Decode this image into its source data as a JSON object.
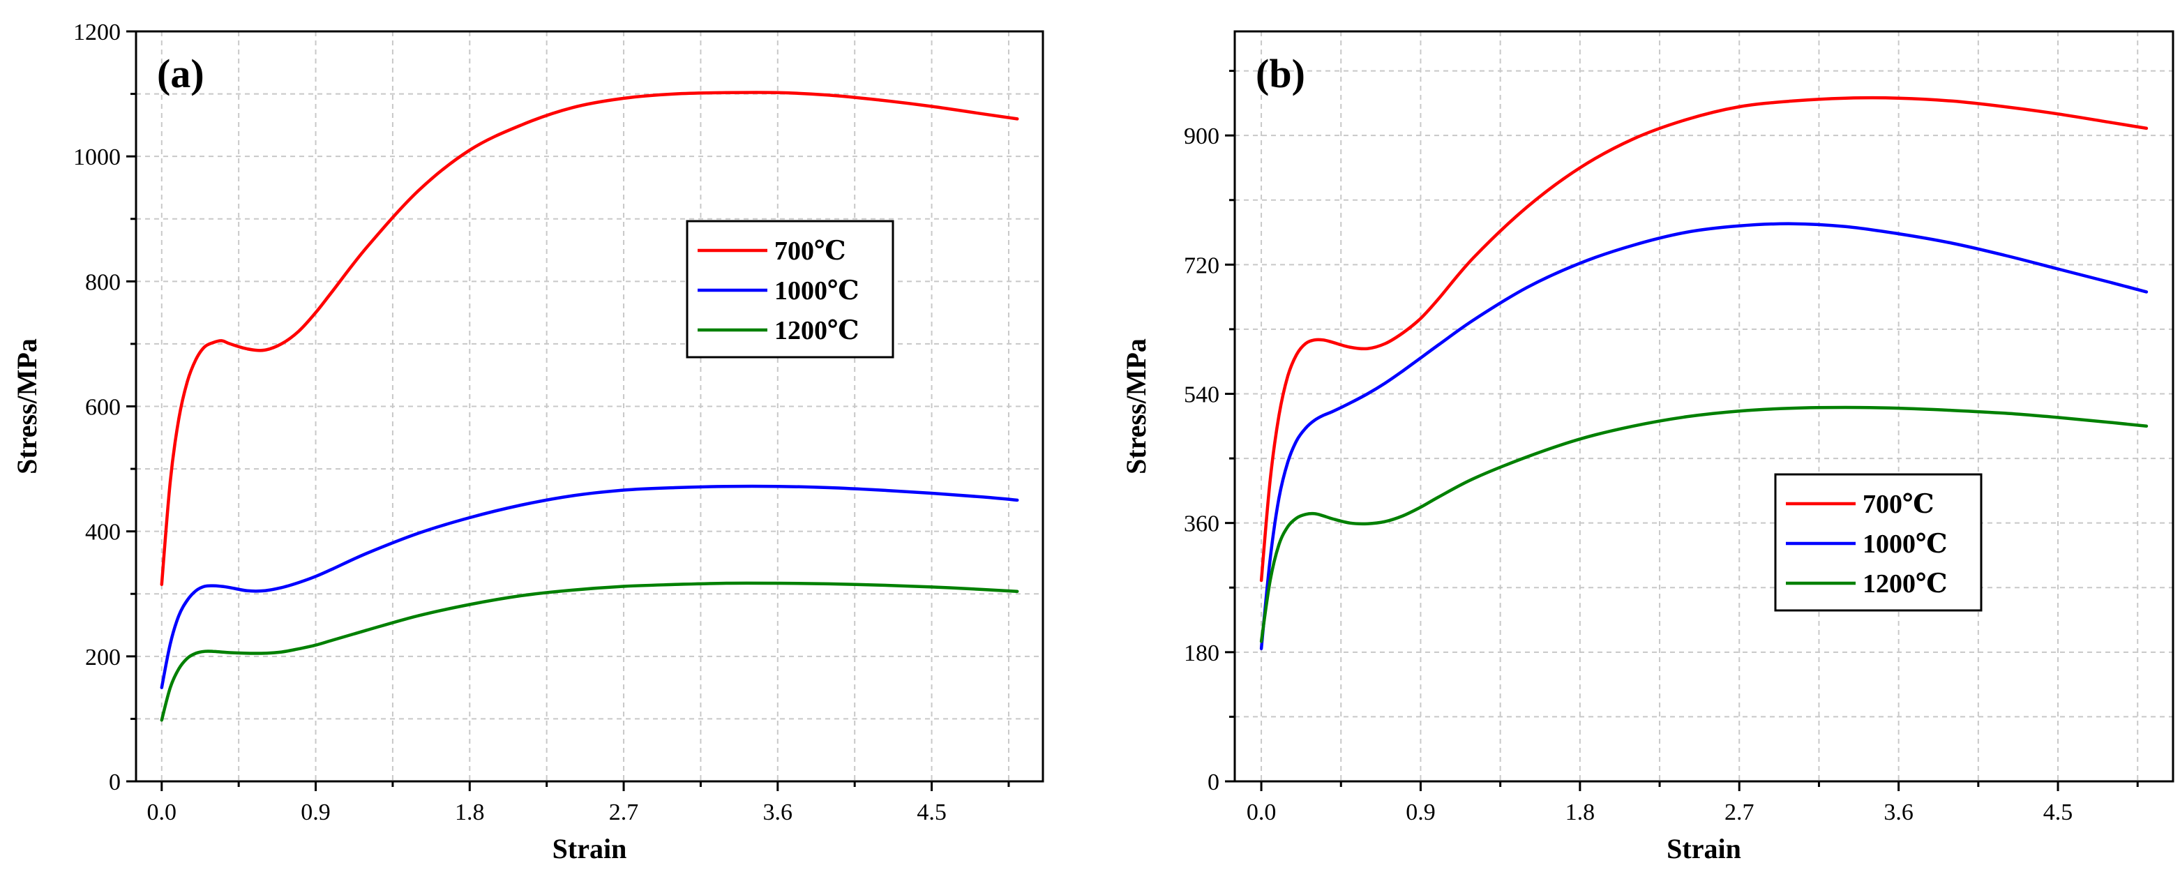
{
  "chart_data": [
    {
      "type": "line",
      "panel_label": "(a)",
      "xlabel": "Strain",
      "ylabel": "Stress/MPa",
      "xlim": [
        -0.15,
        5.15
      ],
      "ylim": [
        0,
        1200
      ],
      "xticks": [
        0.0,
        0.9,
        1.8,
        2.7,
        3.6,
        4.5
      ],
      "xtick_labels": [
        "0.0",
        "0.9",
        "1.8",
        "2.7",
        "3.6",
        "4.5"
      ],
      "yticks": [
        0,
        200,
        400,
        600,
        800,
        1000,
        1200
      ],
      "ytick_labels": [
        "0",
        "200",
        "400",
        "600",
        "800",
        "1000",
        "1200"
      ],
      "grid": true,
      "legend_position": "center-right",
      "series": [
        {
          "name": "700℃",
          "color": "#ff0000",
          "x": [
            0.0,
            0.05,
            0.1,
            0.15,
            0.2,
            0.25,
            0.3,
            0.35,
            0.4,
            0.5,
            0.6,
            0.7,
            0.8,
            0.9,
            1.0,
            1.2,
            1.5,
            1.8,
            2.1,
            2.4,
            2.7,
            3.0,
            3.3,
            3.6,
            3.9,
            4.2,
            4.5,
            4.8,
            5.0
          ],
          "y": [
            315,
            480,
            580,
            640,
            675,
            695,
            702,
            705,
            700,
            692,
            690,
            700,
            720,
            750,
            785,
            855,
            945,
            1010,
            1050,
            1078,
            1093,
            1100,
            1102,
            1102,
            1098,
            1090,
            1080,
            1068,
            1060
          ]
        },
        {
          "name": "1000℃",
          "color": "#0000ff",
          "x": [
            0.0,
            0.05,
            0.1,
            0.15,
            0.2,
            0.25,
            0.3,
            0.35,
            0.4,
            0.5,
            0.6,
            0.7,
            0.8,
            0.9,
            1.0,
            1.2,
            1.5,
            1.8,
            2.1,
            2.4,
            2.7,
            3.0,
            3.3,
            3.6,
            3.9,
            4.2,
            4.5,
            4.8,
            5.0
          ],
          "y": [
            150,
            220,
            265,
            290,
            305,
            312,
            313,
            312,
            310,
            305,
            305,
            310,
            318,
            328,
            340,
            365,
            397,
            422,
            442,
            457,
            466,
            470,
            472,
            472,
            470,
            466,
            461,
            455,
            450
          ]
        },
        {
          "name": "1200℃",
          "color": "#008000",
          "x": [
            0.0,
            0.05,
            0.1,
            0.15,
            0.2,
            0.25,
            0.3,
            0.35,
            0.4,
            0.5,
            0.6,
            0.7,
            0.8,
            0.9,
            1.0,
            1.2,
            1.5,
            1.8,
            2.1,
            2.4,
            2.7,
            3.0,
            3.3,
            3.6,
            3.9,
            4.2,
            4.5,
            4.8,
            5.0
          ],
          "y": [
            98,
            150,
            180,
            197,
            205,
            208,
            208,
            207,
            206,
            205,
            205,
            207,
            212,
            218,
            226,
            242,
            265,
            283,
            297,
            306,
            312,
            315,
            317,
            317,
            316,
            314,
            311,
            307,
            304
          ]
        }
      ]
    },
    {
      "type": "line",
      "panel_label": "(b)",
      "xlabel": "Strain",
      "ylabel": "Stress/MPa",
      "xlim": [
        -0.15,
        5.15
      ],
      "ylim": [
        0,
        1045
      ],
      "xticks": [
        0.0,
        0.9,
        1.8,
        2.7,
        3.6,
        4.5
      ],
      "xtick_labels": [
        "0.0",
        "0.9",
        "1.8",
        "2.7",
        "3.6",
        "4.5"
      ],
      "yticks": [
        0,
        180,
        360,
        540,
        720,
        900
      ],
      "ytick_labels": [
        "0",
        "180",
        "360",
        "540",
        "720",
        "900"
      ],
      "grid": true,
      "legend_position": "center",
      "series": [
        {
          "name": "700℃",
          "color": "#ff0000",
          "x": [
            0.0,
            0.05,
            0.1,
            0.15,
            0.2,
            0.25,
            0.3,
            0.35,
            0.4,
            0.5,
            0.6,
            0.7,
            0.8,
            0.9,
            1.0,
            1.2,
            1.5,
            1.8,
            2.1,
            2.4,
            2.7,
            3.0,
            3.3,
            3.6,
            3.9,
            4.2,
            4.5,
            4.8,
            5.0
          ],
          "y": [
            280,
            420,
            510,
            565,
            595,
            610,
            615,
            615,
            612,
            605,
            603,
            610,
            625,
            645,
            672,
            730,
            800,
            855,
            895,
            922,
            940,
            948,
            952,
            952,
            948,
            940,
            930,
            918,
            910
          ]
        },
        {
          "name": "1000℃",
          "color": "#0000ff",
          "x": [
            0.0,
            0.05,
            0.1,
            0.15,
            0.2,
            0.25,
            0.3,
            0.35,
            0.4,
            0.5,
            0.6,
            0.7,
            0.8,
            0.9,
            1.0,
            1.2,
            1.5,
            1.8,
            2.1,
            2.4,
            2.7,
            3.0,
            3.3,
            3.6,
            3.9,
            4.2,
            4.5,
            4.8,
            5.0
          ],
          "y": [
            185,
            310,
            395,
            445,
            475,
            492,
            503,
            510,
            515,
            527,
            540,
            555,
            572,
            590,
            608,
            643,
            688,
            722,
            747,
            765,
            774,
            777,
            773,
            763,
            750,
            733,
            714,
            695,
            682
          ]
        },
        {
          "name": "1200℃",
          "color": "#008000",
          "x": [
            0.0,
            0.05,
            0.1,
            0.15,
            0.2,
            0.25,
            0.3,
            0.35,
            0.4,
            0.5,
            0.6,
            0.7,
            0.8,
            0.9,
            1.0,
            1.2,
            1.5,
            1.8,
            2.1,
            2.4,
            2.7,
            3.0,
            3.3,
            3.6,
            3.9,
            4.2,
            4.5,
            4.8,
            5.0
          ],
          "y": [
            195,
            280,
            330,
            355,
            367,
            372,
            373,
            370,
            366,
            360,
            359,
            362,
            370,
            382,
            396,
            422,
            452,
            477,
            495,
            508,
            516,
            520,
            521,
            520,
            517,
            513,
            507,
            500,
            495
          ]
        }
      ]
    }
  ]
}
